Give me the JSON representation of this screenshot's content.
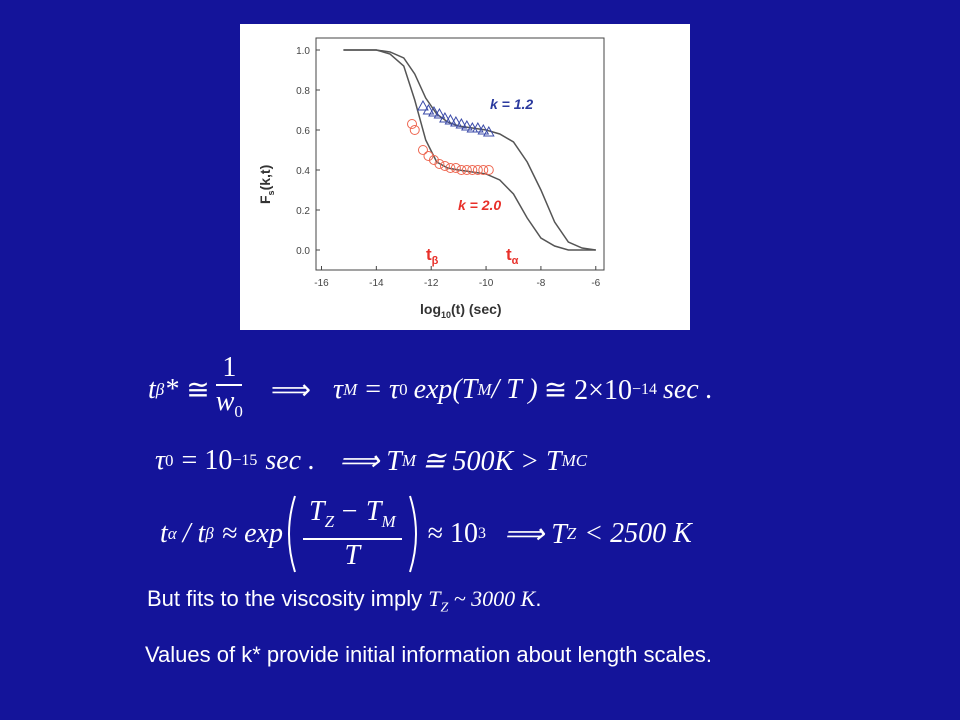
{
  "chart_data": {
    "type": "line",
    "xlabel": {
      "main": "log",
      "sub": "10",
      "rest": "(t)  (sec)"
    },
    "ylabel": {
      "main": "F",
      "sub": "s",
      "rest": "(k,t)"
    },
    "xlim": [
      -16.2,
      -5.7
    ],
    "ylim": [
      -0.1,
      1.06
    ],
    "xticks": [
      -16,
      -14,
      -12,
      -10,
      -8,
      -6
    ],
    "yticks": [
      {
        "value": 0,
        "label": "0.0"
      },
      0.2,
      0.4,
      0.6,
      0.8,
      {
        "value": 1,
        "label": "1.0"
      }
    ],
    "series": [
      {
        "style": "line",
        "color": "#555555",
        "x": [
          -15.2,
          -14,
          -13.5,
          -13,
          -12.6,
          -12.2,
          -11.8,
          -11.4,
          -11,
          -10.5,
          -10,
          -9.5,
          -9,
          -8.5,
          -8,
          -7.5,
          -7,
          -6.5,
          -6
        ],
        "values": [
          1.0,
          1.0,
          0.99,
          0.96,
          0.88,
          0.76,
          0.68,
          0.64,
          0.62,
          0.61,
          0.6,
          0.58,
          0.54,
          0.44,
          0.3,
          0.14,
          0.04,
          0.01,
          0.0
        ]
      },
      {
        "style": "line",
        "color": "#555555",
        "x": [
          -15.2,
          -14,
          -13.5,
          -13,
          -12.6,
          -12.2,
          -11.8,
          -11.4,
          -11,
          -10.5,
          -10,
          -9.5,
          -9,
          -8.5,
          -8,
          -7.5,
          -7,
          -6.5,
          -6
        ],
        "values": [
          1.0,
          1.0,
          0.98,
          0.92,
          0.75,
          0.55,
          0.44,
          0.41,
          0.4,
          0.39,
          0.38,
          0.35,
          0.28,
          0.16,
          0.06,
          0.02,
          0.0,
          0.0,
          0.0
        ]
      },
      {
        "style": "triangle",
        "color": "#3a4aa8",
        "x": [
          -12.3,
          -12.1,
          -11.9,
          -11.7,
          -11.5,
          -11.3,
          -11.1,
          -10.9,
          -10.7,
          -10.5,
          -10.3,
          -10.1,
          -9.9
        ],
        "values": [
          0.72,
          0.7,
          0.69,
          0.68,
          0.66,
          0.65,
          0.64,
          0.63,
          0.62,
          0.61,
          0.61,
          0.6,
          0.59
        ]
      },
      {
        "style": "circle",
        "color": "#ee6650",
        "x": [
          -12.7,
          -12.6,
          -12.3,
          -12.1,
          -11.9,
          -11.7,
          -11.5,
          -11.3,
          -11.1,
          -10.9,
          -10.7,
          -10.5,
          -10.3,
          -10.1,
          -9.9
        ],
        "values": [
          0.63,
          0.6,
          0.5,
          0.47,
          0.45,
          0.43,
          0.42,
          0.41,
          0.41,
          0.4,
          0.4,
          0.4,
          0.4,
          0.4,
          0.4
        ]
      }
    ],
    "annotations": [
      {
        "text": "k = 1.2",
        "color": "#2b3a9e"
      },
      {
        "text": "k = 2.0",
        "color": "#e8302a"
      },
      {
        "text": "t",
        "sub": "β",
        "color": "#e8302a"
      },
      {
        "text": "t",
        "sub": "α",
        "color": "#e8302a"
      }
    ]
  },
  "equations": [
    [
      "t",
      "β",
      "*",
      "≅",
      "1",
      "w",
      "0",
      "⟹",
      "τ",
      "M",
      "=",
      "τ",
      "0",
      "exp(T",
      "M",
      "/ T )",
      "≅ 2×10",
      "−14",
      "sec ."
    ],
    [
      "τ",
      "0",
      "= 10",
      "−15",
      "sec .",
      "⟹ T",
      "M",
      "≅ 500K > T",
      "MC"
    ],
    [
      "t",
      "α",
      "/ t",
      "β",
      "≈ exp",
      "T",
      "Z",
      "− T",
      "M",
      "T",
      "≈ 10",
      "3",
      "⟹ T",
      "Z",
      "< 2500 K"
    ]
  ],
  "lines": [
    {
      "pre": "But fits to the viscosity imply ",
      "sym": "T",
      "sub": "Z",
      "post": " ~ 3000 K",
      "end": "."
    },
    {
      "pre": "Values of k* provide initial information about length scales."
    }
  ]
}
